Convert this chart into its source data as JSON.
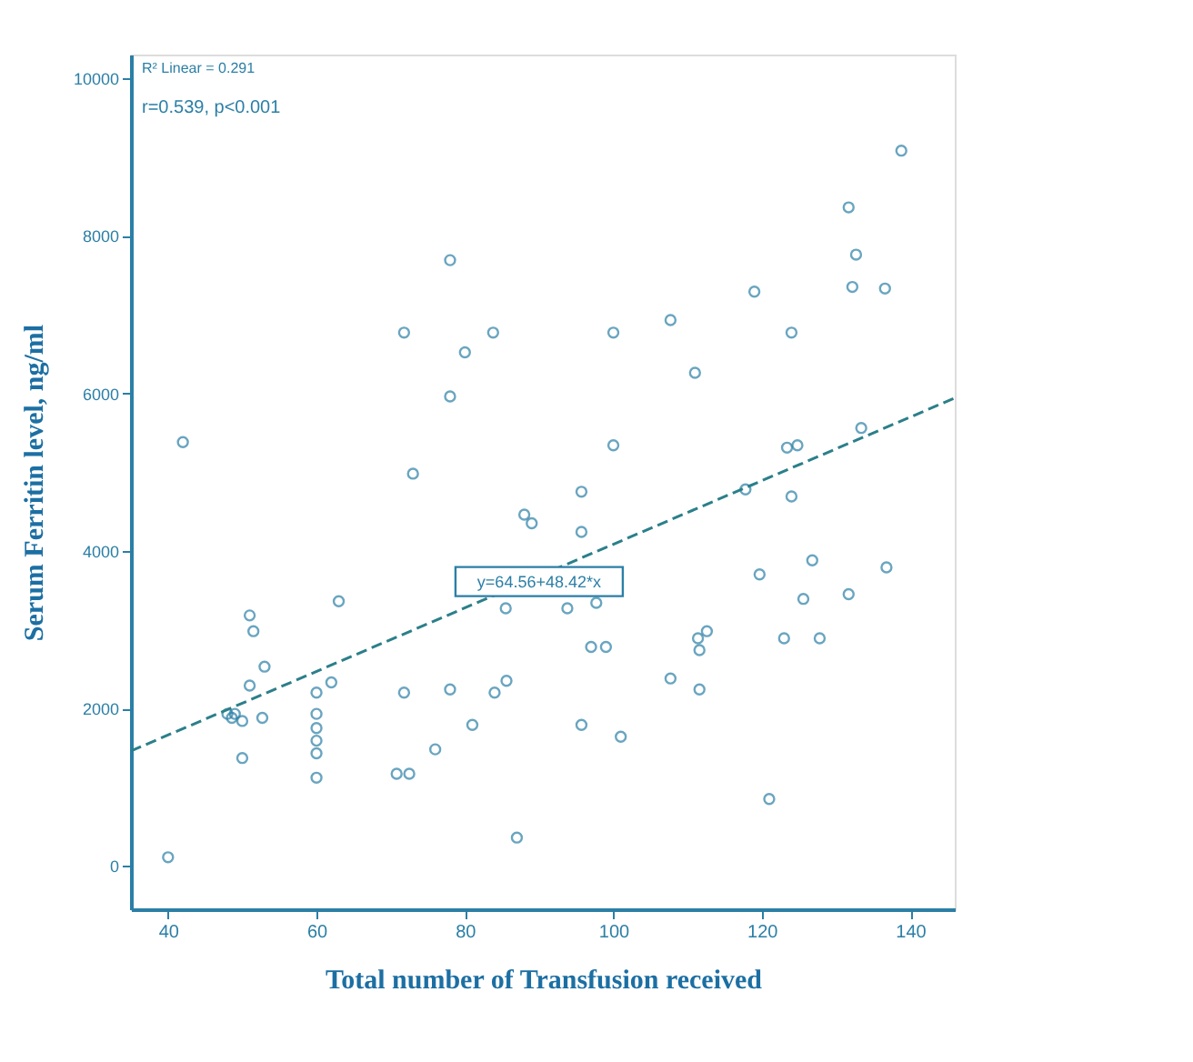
{
  "chart_data": {
    "type": "scatter",
    "xlabel": "Total number of Transfusion received",
    "ylabel": "Serum Ferritin level, ng/ml",
    "xlim": [
      35,
      146
    ],
    "ylim": [
      -550,
      10300
    ],
    "xticks": [
      40,
      60,
      80,
      100,
      120,
      140
    ],
    "yticks": [
      0,
      2000,
      4000,
      6000,
      8000,
      10000
    ],
    "grid": false,
    "annotations": [
      "R² Linear = 0.291",
      "r=0.539, p<0.001",
      {
        "text": "y=64.56+48.42*x",
        "x": 90,
        "y": 3610
      }
    ],
    "series": [
      {
        "marker": "circle",
        "color": "#2b7fa6",
        "x": [
          40,
          42,
          48,
          48.6,
          49,
          50,
          50,
          51,
          51.5,
          51,
          53,
          52.7,
          60,
          60,
          60,
          60,
          60,
          60,
          62,
          63,
          73,
          71.8,
          71.8,
          70.8,
          72.5,
          76,
          78,
          78,
          78,
          80,
          81,
          83.8,
          84,
          85.6,
          85.5,
          87,
          88,
          89,
          93.8,
          95.7,
          95.7,
          95.7,
          97,
          99,
          97.7,
          100,
          100,
          101,
          107.7,
          107.7,
          111,
          111.4,
          112.6,
          111.6,
          111.6,
          119,
          117.8,
          119.7,
          121,
          123,
          123.4,
          124,
          124,
          124.8,
          125.6,
          126.8,
          127.8,
          131.7,
          131.7,
          132.2,
          132.7,
          133.4,
          136.6,
          136.8,
          138.8
        ],
        "values": [
          110,
          5380,
          1930,
          1880,
          1930,
          1840,
          1370,
          3180,
          2980,
          2290,
          2530,
          1880,
          2200,
          1930,
          1750,
          1590,
          1430,
          1120,
          2330,
          3360,
          4980,
          6770,
          2200,
          1170,
          1170,
          1480,
          7690,
          5960,
          2240,
          6520,
          1790,
          6770,
          2200,
          2350,
          3270,
          360,
          4460,
          4350,
          3270,
          4750,
          4240,
          1790,
          2780,
          2780,
          3340,
          6770,
          5340,
          1640,
          6930,
          2380,
          6260,
          2890,
          2980,
          2740,
          2240,
          7290,
          4780,
          3700,
          850,
          2890,
          5310,
          6770,
          4690,
          5340,
          3390,
          3880,
          2890,
          8360,
          3450,
          7350,
          7760,
          5560,
          7330,
          3790,
          9080
        ]
      },
      {
        "type": "line",
        "color": "#2b7f8a",
        "line_style": "dashed",
        "x": [
          35,
          146
        ],
        "values": [
          1460,
          5940
        ]
      }
    ]
  }
}
